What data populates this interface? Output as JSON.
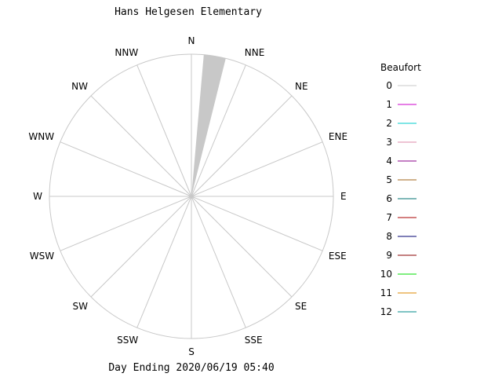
{
  "chart_data": {
    "type": "windrose",
    "title": "Hans Helgesen Elementary",
    "footer": "Day Ending 2020/06/19 05:40",
    "directions": [
      "N",
      "NNE",
      "NE",
      "ENE",
      "E",
      "ESE",
      "SE",
      "SSE",
      "S",
      "SSW",
      "SW",
      "WSW",
      "W",
      "WNW",
      "NW",
      "NNW"
    ],
    "grid": true,
    "legend": {
      "title": "Beaufort",
      "position": "right",
      "items": [
        {
          "label": "0",
          "color": "#c8c8c8"
        },
        {
          "label": "1",
          "color": "#cc00cc"
        },
        {
          "label": "2",
          "color": "#00cccc"
        },
        {
          "label": "3",
          "color": "#dd88aa"
        },
        {
          "label": "4",
          "color": "#880088"
        },
        {
          "label": "5",
          "color": "#a06418"
        },
        {
          "label": "6",
          "color": "#007070"
        },
        {
          "label": "7",
          "color": "#aa0000"
        },
        {
          "label": "8",
          "color": "#000070"
        },
        {
          "label": "9",
          "color": "#880000"
        },
        {
          "label": "10",
          "color": "#00dd00"
        },
        {
          "label": "11",
          "color": "#dd8800"
        },
        {
          "label": "12",
          "color": "#008888"
        }
      ]
    },
    "series": [
      {
        "beaufort": "0",
        "color": "#c8c8c8",
        "wedges": [
          {
            "direction": "NNE",
            "start_deg": 5,
            "end_deg": 14,
            "fraction": 1.0
          }
        ]
      }
    ]
  }
}
